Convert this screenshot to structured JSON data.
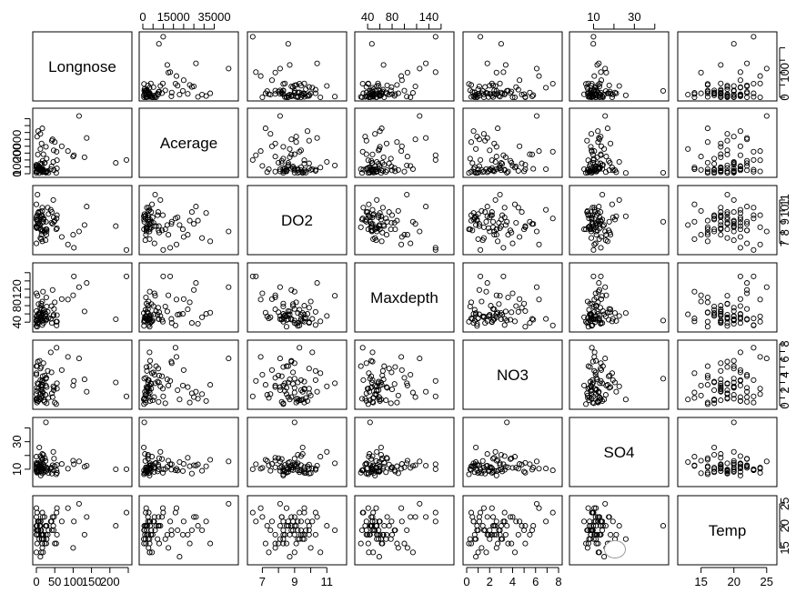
{
  "chart_data": {
    "type": "scatter",
    "plot_type": "scatterplot-matrix",
    "variables": [
      "Longnose",
      "Acerage",
      "DO2",
      "Maxdepth",
      "NO3",
      "SO4",
      "Temp"
    ],
    "ranges": {
      "Longnose": [
        0,
        250
      ],
      "Acerage": [
        0,
        45000
      ],
      "DO2": [
        6.3,
        12.0
      ],
      "Maxdepth": [
        25,
        175
      ],
      "NO3": [
        0,
        8
      ],
      "SO4": [
        0,
        45
      ],
      "Temp": [
        12,
        26
      ]
    },
    "axis_ticks": {
      "Longnose": {
        "labels": [
          "0",
          "50",
          "100",
          "150",
          "200"
        ],
        "values": [
          0,
          50,
          100,
          150,
          200
        ],
        "minor": [
          250
        ],
        "side": "bottom"
      },
      "Acerage": {
        "labels": [
          "0",
          "15000",
          "35000"
        ],
        "values": [
          0,
          15000,
          35000
        ],
        "minor": [
          5000,
          10000,
          20000,
          25000,
          30000
        ],
        "side": "top"
      },
      "DO2": {
        "labels": [
          "7",
          "9",
          "11"
        ],
        "values": [
          7,
          9,
          11
        ],
        "minor": [
          8,
          10
        ],
        "side": "bottom"
      },
      "Maxdepth": {
        "labels": [
          "40",
          "80",
          "140"
        ],
        "values": [
          40,
          80,
          140
        ],
        "minor": [
          60,
          100,
          120,
          160
        ],
        "side": "top"
      },
      "NO3": {
        "labels": [
          "0",
          "2",
          "4",
          "6",
          "8"
        ],
        "values": [
          0,
          2,
          4,
          6,
          8
        ],
        "minor": [
          1,
          3,
          5,
          7
        ],
        "side": "bottom"
      },
      "SO4": {
        "labels": [
          "10",
          "30"
        ],
        "values": [
          10,
          30
        ],
        "minor": [
          20,
          40
        ],
        "side": "top"
      },
      "Temp": {
        "labels": [
          "15",
          "20",
          "25"
        ],
        "values": [
          15,
          20,
          25
        ],
        "minor": [],
        "side": "bottom"
      }
    },
    "y_axis_ticks": {
      "Longnose": {
        "labels": [
          "0",
          "100"
        ],
        "values": [
          0,
          100
        ],
        "minor": [
          50,
          150,
          200
        ],
        "side": "right"
      },
      "Acerage": {
        "labels": [
          "0",
          "10000",
          "20000"
        ],
        "values": [
          0,
          10000,
          20000
        ],
        "minor": [
          5000,
          15000,
          25000,
          30000,
          35000,
          40000
        ],
        "side": "left"
      },
      "DO2": {
        "labels": [
          "7",
          "8",
          "9",
          "10",
          "11"
        ],
        "values": [
          7,
          8,
          9,
          10,
          11
        ],
        "minor": [],
        "side": "right"
      },
      "Maxdepth": {
        "labels": [
          "40",
          "80",
          "120"
        ],
        "values": [
          40,
          80,
          120
        ],
        "minor": [
          60,
          100,
          140,
          160
        ],
        "side": "left"
      },
      "NO3": {
        "labels": [
          "0",
          "2",
          "4",
          "6",
          "8"
        ],
        "values": [
          0,
          2,
          4,
          6,
          8
        ],
        "minor": [
          1,
          3,
          5,
          7
        ],
        "side": "right"
      },
      "SO4": {
        "labels": [
          "10",
          "30"
        ],
        "values": [
          10,
          30
        ],
        "minor": [
          20,
          40
        ],
        "side": "left"
      },
      "Temp": {
        "labels": [
          "15",
          "20",
          "25"
        ],
        "values": [
          15,
          20,
          25
        ],
        "minor": [],
        "side": "right"
      }
    },
    "observations": {
      "Longnose": [
        13,
        2,
        26,
        4,
        28,
        0,
        0,
        7,
        0,
        12,
        2,
        9,
        11,
        11,
        31,
        102,
        13,
        19,
        48,
        14,
        23,
        16,
        22,
        6,
        19,
        25,
        39,
        56,
        11,
        42,
        27,
        1,
        44,
        55,
        0,
        28,
        3,
        26,
        1,
        5,
        16,
        16,
        0,
        4,
        2,
        14,
        15,
        116,
        245,
        131,
        54,
        47,
        69,
        18,
        46,
        20,
        17,
        6,
        11,
        0,
        50,
        16,
        100,
        41,
        33,
        56,
        86,
        8,
        216,
        137,
        13
      ],
      "Acerage": [
        2528,
        3333,
        19611,
        3570,
        1722,
        583,
        4790,
        5549,
        1652,
        3311,
        1446,
        3543,
        7541,
        2536,
        2022,
        13411,
        3331,
        14151,
        2542,
        3251,
        8000,
        1040,
        7700,
        4200,
        2600,
        1200,
        3300,
        9800,
        18000,
        24000,
        1500,
        2200,
        25000,
        16000,
        4500,
        11000,
        6000,
        700,
        1900,
        31000,
        33000,
        2800,
        5700,
        14000,
        27000,
        22000,
        7200,
        42000,
        10000,
        12000,
        600,
        17000,
        20000,
        3400,
        8600,
        1300,
        9400,
        4100,
        29000,
        6500,
        23000,
        2900,
        12500,
        5200,
        800,
        3900,
        16500,
        500,
        7900,
        26000,
        1800
      ],
      "DO2": [
        9.6,
        8.5,
        8.3,
        9.2,
        8.1,
        9.2,
        9.4,
        8.6,
        8.5,
        8.3,
        9.6,
        8.8,
        9.9,
        9.4,
        10.3,
        6.6,
        7.4,
        9.0,
        9.0,
        8.1,
        8.0,
        9.5,
        8.2,
        8.9,
        9.2,
        7.3,
        10.1,
        9.6,
        8.7,
        9.9,
        7.8,
        8.5,
        8.8,
        9.3,
        10.6,
        8.3,
        11.5,
        9.0,
        8.4,
        9.8,
        7.2,
        10.0,
        7.0,
        8.8,
        9.1,
        7.8,
        9.6,
        8.1,
        6.4,
        8.7,
        8.3,
        9.4,
        7.6,
        9.0,
        11.0,
        9.3,
        8.2,
        9.9,
        7.5,
        8.6,
        9.1,
        10.3,
        7.8,
        8.9,
        9.7,
        8.4,
        6.9,
        9.5,
        8.6,
        10.4,
        8.3
      ],
      "Maxdepth": [
        80,
        29,
        60,
        38,
        47,
        31,
        44,
        59,
        54,
        52,
        49,
        46,
        75,
        48,
        65,
        151,
        49,
        38,
        72,
        55,
        64,
        43,
        48,
        84,
        62,
        54,
        48,
        41,
        59,
        38,
        100,
        45,
        118,
        32,
        42,
        78,
        104,
        44,
        55,
        60,
        63,
        90,
        110,
        48,
        36,
        71,
        58,
        125,
        151,
        66,
        41,
        58,
        96,
        114,
        55,
        70,
        46,
        40,
        52,
        67,
        88,
        33,
        105,
        79,
        50,
        57,
        95,
        62,
        47,
        135,
        85
      ],
      "NO3": [
        2.1,
        5.1,
        2.6,
        0.6,
        2.4,
        0.9,
        0.7,
        1.1,
        1.5,
        2.6,
        0.4,
        5.8,
        4.8,
        3.3,
        4.5,
        3.2,
        1.0,
        5.5,
        2.3,
        2.0,
        3.9,
        1.8,
        0.5,
        2.8,
        3.0,
        1.4,
        6.9,
        2.2,
        0.8,
        1.6,
        3.6,
        2.3,
        1.1,
        7.5,
        4.2,
        0.3,
        2.9,
        3.5,
        1.9,
        0.6,
        2.7,
        1.3,
        4.0,
        5.7,
        0.9,
        2.4,
        3.1,
        6.1,
        1.2,
        3.4,
        0.2,
        2.0,
        4.6,
        1.7,
        2.5,
        0.7,
        3.8,
        2.2,
        1.5,
        5.1,
        0.4,
        3.3,
        2.6,
        4.3,
        1.0,
        2.9,
        6.3,
        0.8,
        3.0,
        1.8,
        5.0
      ],
      "SO4": [
        11.5,
        7.5,
        8.7,
        14.3,
        8.8,
        9.1,
        13.0,
        8.1,
        11.2,
        5.4,
        9.6,
        11.2,
        13.4,
        19.5,
        10.4,
        13.6,
        12.8,
        13.6,
        17.7,
        11.2,
        18.0,
        21.1,
        12.0,
        9.4,
        20.5,
        16.0,
        10.5,
        7.4,
        15.2,
        6.8,
        11.4,
        8.0,
        12.9,
        9.2,
        19.1,
        10.1,
        14.3,
        44.1,
        8.6,
        12.1,
        16.9,
        7.1,
        11.0,
        9.7,
        13.5,
        18.3,
        8.4,
        15.7,
        10.0,
        11.8,
        6.3,
        9.0,
        13.8,
        12.4,
        22.6,
        7.8,
        17.4,
        10.7,
        8.9,
        14.6,
        12.2,
        9.5,
        16.2,
        11.1,
        7.2,
        13.1,
        10.4,
        25.8,
        9.9,
        12.6,
        8.3
      ],
      "Temp": [
        18,
        16,
        18,
        21,
        20,
        19,
        18,
        21,
        24,
        21,
        23,
        20,
        20,
        21,
        18,
        21,
        14,
        18,
        22,
        17,
        16,
        18,
        22,
        19,
        17,
        20,
        21,
        24,
        13,
        19,
        16,
        20,
        22,
        23,
        14,
        17,
        19,
        20,
        18,
        21,
        16,
        15,
        22,
        19,
        20,
        18,
        17,
        25,
        23,
        18,
        16,
        19,
        21,
        14,
        20,
        17,
        22,
        18,
        19,
        20,
        16,
        23,
        15,
        21,
        19,
        18,
        24,
        17,
        20,
        22,
        19
      ]
    }
  }
}
